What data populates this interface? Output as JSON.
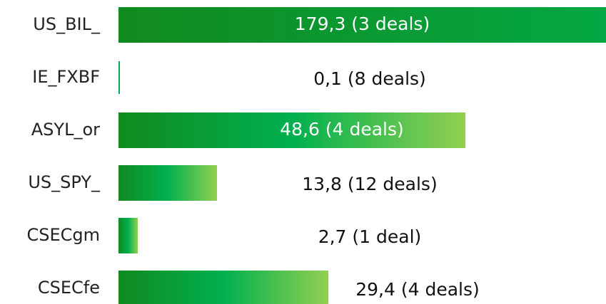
{
  "chart_data": {
    "type": "bar",
    "orientation": "horizontal",
    "categories": [
      "US_BIL_",
      "IE_FXBF",
      "ASYL_or",
      "US_SPY_",
      "CSECgm",
      "CSECfe"
    ],
    "values": [
      179.3,
      0.1,
      48.6,
      13.8,
      2.7,
      29.4
    ],
    "value_labels": [
      "179,3 (3 deals)",
      "0,1 (8 deals)",
      "48,6 (4 deals)",
      "13,8 (12 deals)",
      "2,7 (1 deal)",
      "29,4 (4 deals)"
    ],
    "colors": [
      "#118a1f",
      "#00b04f",
      "#92d050"
    ]
  }
}
